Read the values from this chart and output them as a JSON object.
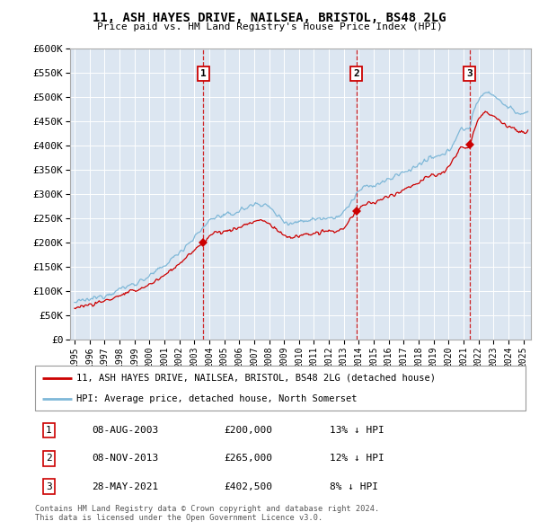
{
  "title": "11, ASH HAYES DRIVE, NAILSEA, BRISTOL, BS48 2LG",
  "subtitle": "Price paid vs. HM Land Registry's House Price Index (HPI)",
  "legend_line1": "11, ASH HAYES DRIVE, NAILSEA, BRISTOL, BS48 2LG (detached house)",
  "legend_line2": "HPI: Average price, detached house, North Somerset",
  "footer1": "Contains HM Land Registry data © Crown copyright and database right 2024.",
  "footer2": "This data is licensed under the Open Government Licence v3.0.",
  "table": [
    {
      "num": "1",
      "date": "08-AUG-2003",
      "price": "£200,000",
      "hpi": "13% ↓ HPI"
    },
    {
      "num": "2",
      "date": "08-NOV-2013",
      "price": "£265,000",
      "hpi": "12% ↓ HPI"
    },
    {
      "num": "3",
      "date": "28-MAY-2021",
      "price": "£402,500",
      "hpi": "8% ↓ HPI"
    }
  ],
  "marker_years": [
    2003.6,
    2013.85,
    2021.4
  ],
  "marker_prices": [
    200000,
    265000,
    402500
  ],
  "ylim": [
    0,
    600000
  ],
  "xlim_start": 1994.7,
  "xlim_end": 2025.5,
  "bg_color": "#dce6f1",
  "red_line_color": "#cc0000",
  "blue_line_color": "#7fb8d8",
  "marker_line_color": "#cc0000",
  "grid_color": "#ffffff"
}
